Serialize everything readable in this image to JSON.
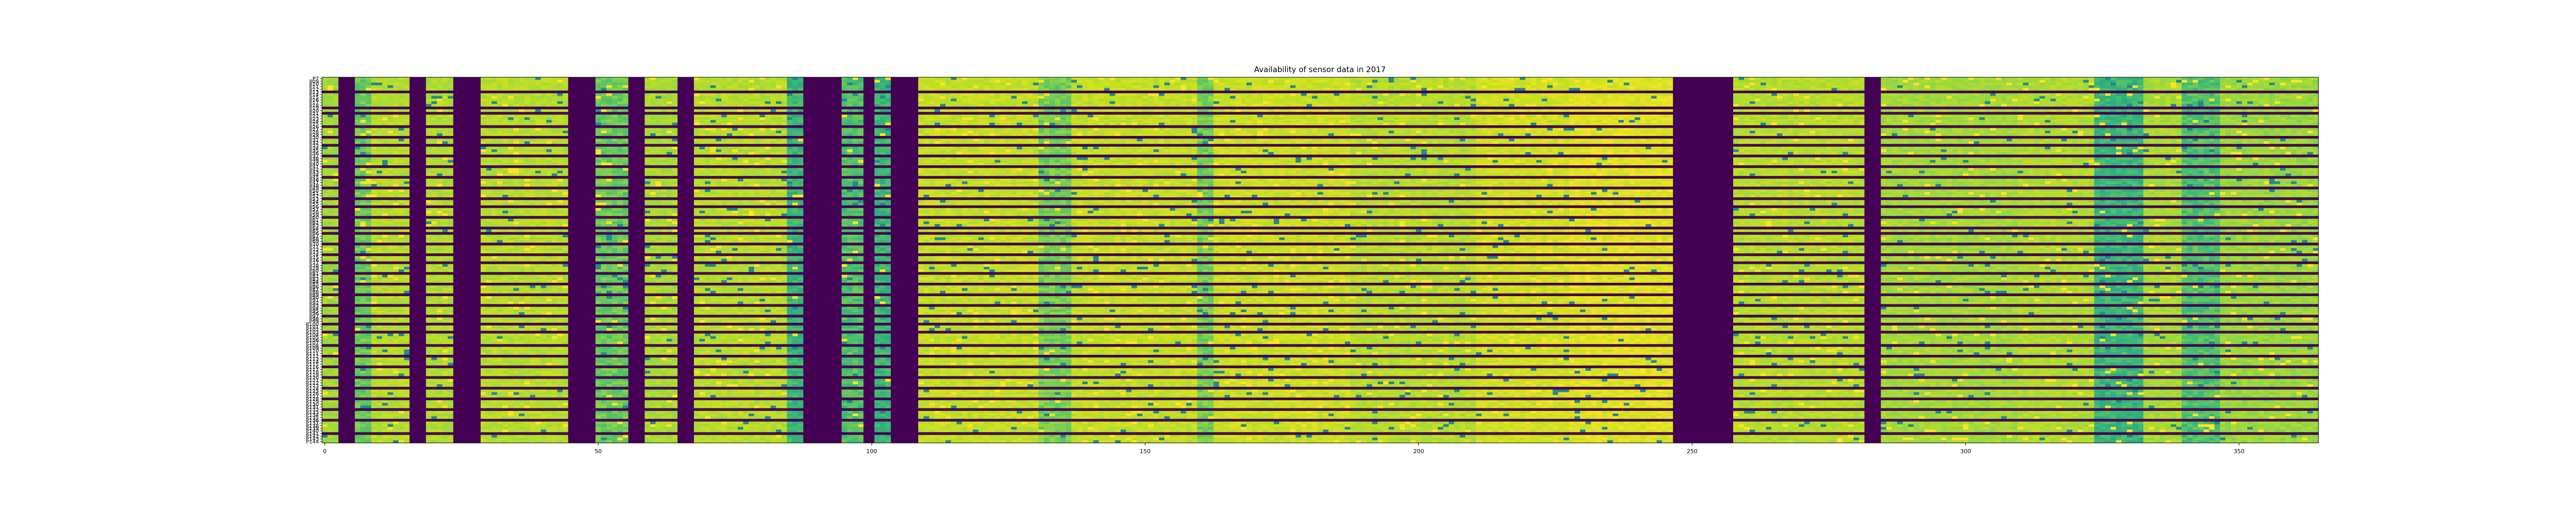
{
  "chart_data": {
    "type": "heatmap",
    "title": "Availability of sensor data in 2017",
    "xlabel": "",
    "ylabel": "",
    "xlim": [
      0,
      365
    ],
    "x_ticks": [
      0,
      50,
      100,
      150,
      200,
      250,
      300,
      350
    ],
    "y_tick_labels": [
      "P7",
      "P09",
      "P10",
      "P11",
      "P12",
      "P13",
      "P14",
      "P15",
      "P16",
      "P17",
      "P18",
      "P19",
      "P20",
      "P21",
      "P22",
      "P23",
      "P24",
      "P25",
      "P26",
      "P27",
      "P28",
      "P29",
      "P30",
      "P31",
      "P32",
      "P33",
      "P34",
      "P35",
      "P36",
      "P37",
      "P38",
      "P39",
      "P40",
      "P41",
      "P42",
      "P43",
      "P44",
      "P45",
      "P46",
      "P47",
      "P48",
      "P49",
      "P50",
      "P51",
      "P52",
      "P53",
      "P54",
      "P55",
      "P56",
      "P57",
      "P58",
      "P59",
      "P60",
      "P61",
      "P62",
      "P63",
      "P64",
      "P65",
      "P66",
      "P67",
      "P68",
      "P69",
      "P70",
      "P71",
      "P72",
      "P73",
      "P74",
      "P75",
      "P76",
      "P77",
      "P78",
      "P79",
      "P80",
      "P81",
      "P82",
      "P83",
      "P84",
      "P85",
      "P86",
      "P87",
      "P88",
      "P89",
      "P90",
      "P91",
      "P92",
      "P93",
      "P94",
      "P95",
      "P96",
      "P97",
      "P98",
      "P99",
      "P100",
      "P101",
      "P102",
      "P103",
      "P104",
      "P105",
      "P106",
      "P107",
      "P108",
      "P109",
      "P110",
      "P111",
      "P112",
      "P113",
      "P114",
      "P115",
      "P116",
      "P117",
      "P118",
      "P119",
      "P120",
      "P121",
      "P122",
      "P123",
      "P124",
      "P125",
      "P126",
      "P127",
      "P128",
      "P129",
      "P130",
      "P131",
      "P132",
      "P133",
      "P134",
      "P135",
      "P136",
      "P137",
      "P138",
      "P139",
      "P140",
      "P141",
      "P142",
      "P143",
      "P144"
    ],
    "colormap": "viridis",
    "colormap_stops": [
      "#440154",
      "#31688e",
      "#21918c",
      "#35b779",
      "#90d743",
      "#c8e020",
      "#fde725"
    ],
    "grid": false,
    "legend": "none",
    "column_profile": [
      {
        "from": 0,
        "to": 2,
        "level": 0.72
      },
      {
        "from": 3,
        "to": 5,
        "level": 0.0
      },
      {
        "from": 6,
        "to": 8,
        "level": 0.6
      },
      {
        "from": 9,
        "to": 15,
        "level": 0.78
      },
      {
        "from": 16,
        "to": 18,
        "level": 0.0
      },
      {
        "from": 19,
        "to": 23,
        "level": 0.76
      },
      {
        "from": 24,
        "to": 28,
        "level": 0.0
      },
      {
        "from": 29,
        "to": 44,
        "level": 0.78
      },
      {
        "from": 45,
        "to": 49,
        "level": 0.0
      },
      {
        "from": 50,
        "to": 55,
        "level": 0.6
      },
      {
        "from": 56,
        "to": 58,
        "level": 0.0
      },
      {
        "from": 59,
        "to": 64,
        "level": 0.74
      },
      {
        "from": 65,
        "to": 67,
        "level": 0.0
      },
      {
        "from": 68,
        "to": 84,
        "level": 0.78
      },
      {
        "from": 85,
        "to": 87,
        "level": 0.5
      },
      {
        "from": 88,
        "to": 94,
        "level": 0.0
      },
      {
        "from": 95,
        "to": 98,
        "level": 0.55
      },
      {
        "from": 99,
        "to": 100,
        "level": 0.0
      },
      {
        "from": 101,
        "to": 103,
        "level": 0.5
      },
      {
        "from": 104,
        "to": 108,
        "level": 0.0
      },
      {
        "from": 109,
        "to": 130,
        "level": 0.82
      },
      {
        "from": 131,
        "to": 136,
        "level": 0.62
      },
      {
        "from": 137,
        "to": 159,
        "level": 0.82
      },
      {
        "from": 160,
        "to": 162,
        "level": 0.62
      },
      {
        "from": 163,
        "to": 187,
        "level": 0.84
      },
      {
        "from": 188,
        "to": 210,
        "level": 0.78
      },
      {
        "from": 211,
        "to": 227,
        "level": 0.86
      },
      {
        "from": 228,
        "to": 246,
        "level": 0.9
      },
      {
        "from": 247,
        "to": 257,
        "level": 0.0
      },
      {
        "from": 258,
        "to": 281,
        "level": 0.78
      },
      {
        "from": 282,
        "to": 284,
        "level": 0.0
      },
      {
        "from": 285,
        "to": 309,
        "level": 0.72
      },
      {
        "from": 310,
        "to": 323,
        "level": 0.76
      },
      {
        "from": 324,
        "to": 332,
        "level": 0.5
      },
      {
        "from": 333,
        "to": 339,
        "level": 0.74
      },
      {
        "from": 340,
        "to": 346,
        "level": 0.55
      },
      {
        "from": 347,
        "to": 365,
        "level": 0.7
      }
    ],
    "dark_rows": [
      "P13",
      "P19",
      "P21",
      "P26",
      "P30",
      "P33",
      "P37",
      "P41",
      "P45",
      "P49",
      "P53",
      "P56",
      "P60",
      "P64",
      "P66",
      "P70",
      "P74",
      "P77",
      "P81",
      "P85",
      "P89",
      "P93",
      "P97",
      "P100",
      "P103",
      "P108",
      "P112",
      "P116",
      "P120",
      "P124",
      "P128",
      "P132",
      "P136",
      "P141"
    ]
  }
}
